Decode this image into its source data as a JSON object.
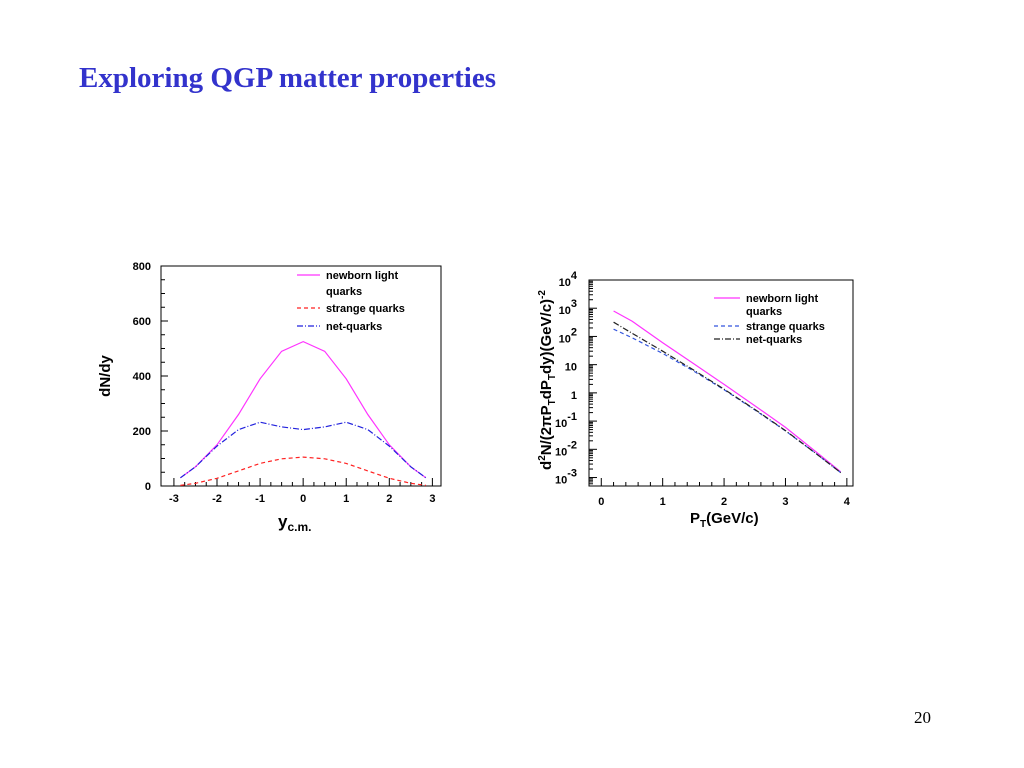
{
  "slide": {
    "title": "Exploring QGP matter properties",
    "page_number": "20"
  },
  "chart_data": [
    {
      "type": "line",
      "xlabel": "y",
      "xlabel_sub": "c.m.",
      "ylabel": "dN/dy",
      "xlim": [
        -3.3,
        3.2
      ],
      "ylim": [
        0,
        800
      ],
      "xticks": [
        "-3",
        "-2",
        "-1",
        "0",
        "1",
        "2",
        "3"
      ],
      "yticks": [
        "0",
        "200",
        "400",
        "600",
        "800"
      ],
      "grid": false,
      "legend_position": "top-right",
      "series": [
        {
          "name": "newborn light quarks",
          "color": "#ff33ff",
          "dash": "solid",
          "x": [
            -2.85,
            -2.5,
            -2.0,
            -1.5,
            -1.0,
            -0.5,
            0.0,
            0.5,
            1.0,
            1.5,
            2.0,
            2.5,
            2.85
          ],
          "y": [
            30,
            70,
            150,
            260,
            390,
            490,
            525,
            490,
            390,
            260,
            150,
            70,
            30
          ]
        },
        {
          "name": "strange quarks",
          "color": "#ff2222",
          "dash": "dashed",
          "x": [
            -2.85,
            -2.5,
            -2.0,
            -1.5,
            -1.0,
            -0.5,
            0.0,
            0.5,
            1.0,
            1.5,
            2.0,
            2.5,
            2.85
          ],
          "y": [
            2,
            10,
            28,
            55,
            82,
            99,
            105,
            99,
            82,
            55,
            28,
            10,
            2
          ]
        },
        {
          "name": "net-quarks",
          "color": "#2222dd",
          "dash": "dashdot",
          "x": [
            -2.85,
            -2.5,
            -2.0,
            -1.5,
            -1.0,
            -0.5,
            0.0,
            0.5,
            1.0,
            1.5,
            2.0,
            2.5,
            2.85
          ],
          "y": [
            30,
            70,
            145,
            205,
            232,
            215,
            205,
            215,
            232,
            205,
            145,
            70,
            30
          ]
        }
      ]
    },
    {
      "type": "line",
      "xlabel": "P",
      "xlabel_sub": "T",
      "xlabel_rest": "(GeV/c)",
      "ylabel": "d²N/(2πP_T dP_T dy)(GeV/c)⁻²",
      "xlim": [
        -0.2,
        4.1
      ],
      "log_y": true,
      "ylim_exp": [
        -3.3,
        4
      ],
      "xticks": [
        "0",
        "1",
        "2",
        "3",
        "4"
      ],
      "yticks": [
        "10^4",
        "10^3",
        "10^2",
        "10",
        "1",
        "10^-1",
        "10^-2",
        "10^-3"
      ],
      "grid": false,
      "legend_position": "top-right",
      "series": [
        {
          "name": "newborn light quarks",
          "color": "#ff33ff",
          "dash": "solid",
          "x": [
            0.2,
            0.5,
            1.0,
            1.5,
            2.0,
            2.5,
            3.0,
            3.5,
            3.9
          ],
          "y": [
            800,
            350,
            60,
            11,
            2.0,
            0.35,
            0.06,
            0.008,
            0.0016
          ]
        },
        {
          "name": "strange quarks",
          "color": "#3355dd",
          "dash": "dashed",
          "x": [
            0.2,
            0.5,
            1.0,
            1.5,
            2.0,
            2.5,
            3.0,
            3.5,
            3.9
          ],
          "y": [
            180,
            90,
            25,
            6,
            1.3,
            0.25,
            0.045,
            0.007,
            0.0015
          ]
        },
        {
          "name": "net-quarks",
          "color": "#222222",
          "dash": "dashdot",
          "x": [
            0.2,
            0.5,
            1.0,
            1.5,
            2.0,
            2.5,
            3.0,
            3.5,
            3.9
          ],
          "y": [
            320,
            130,
            30,
            6.5,
            1.35,
            0.26,
            0.046,
            0.007,
            0.0015
          ]
        }
      ]
    }
  ],
  "legend_labels": {
    "left": [
      "newborn light",
      "quarks",
      "strange quarks",
      "net-quarks"
    ],
    "right": [
      "newborn light",
      "quarks",
      "strange quarks",
      "net-quarks"
    ]
  }
}
